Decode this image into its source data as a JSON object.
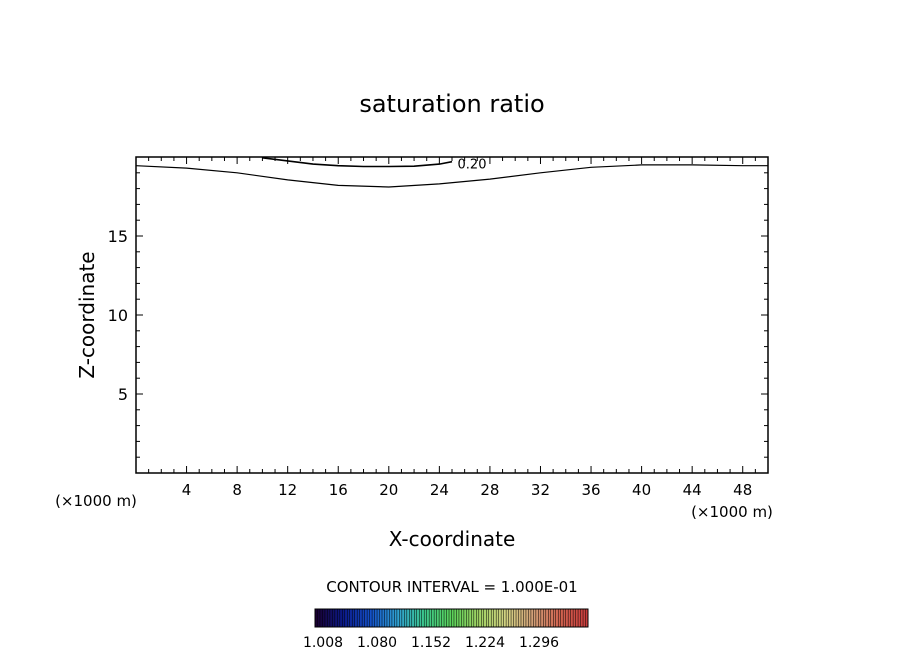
{
  "chart_data": {
    "type": "contour",
    "title": "saturation ratio",
    "xlabel": "X-coordinate",
    "ylabel": "Z-coordinate",
    "x_unit": "(×1000 m)",
    "y_unit": "(×1000 m)",
    "xlim": [
      0,
      50
    ],
    "ylim": [
      0,
      20
    ],
    "x_ticks": [
      4,
      8,
      12,
      16,
      20,
      24,
      28,
      32,
      36,
      40,
      44,
      48
    ],
    "y_ticks": [
      5,
      10,
      15
    ],
    "grid": false,
    "contour_interval_text": "CONTOUR INTERVAL = 1.000E-01",
    "contours": [
      {
        "level_label": "0.20",
        "x": [
          10,
          12,
          14,
          16,
          18,
          20,
          22,
          24,
          25
        ],
        "y": [
          19.95,
          19.75,
          19.55,
          19.45,
          19.4,
          19.4,
          19.42,
          19.55,
          19.7
        ]
      },
      {
        "level_label": "",
        "x": [
          0,
          4,
          8,
          12,
          16,
          20,
          24,
          28,
          32,
          36,
          40,
          44,
          48,
          50
        ],
        "y": [
          19.45,
          19.3,
          19.0,
          18.55,
          18.2,
          18.1,
          18.3,
          18.6,
          19.0,
          19.35,
          19.5,
          19.5,
          19.45,
          19.45
        ]
      }
    ],
    "colorbar": {
      "colors": [
        "#1a0033",
        "#0b1a8a",
        "#1450c8",
        "#2fa0d2",
        "#3cc88c",
        "#5ad25a",
        "#a0d264",
        "#d2d282",
        "#d2a078",
        "#d26450",
        "#c83c3c"
      ],
      "tick_labels": [
        "1.008",
        "1.080",
        "1.152",
        "1.224",
        "1.296"
      ]
    }
  }
}
